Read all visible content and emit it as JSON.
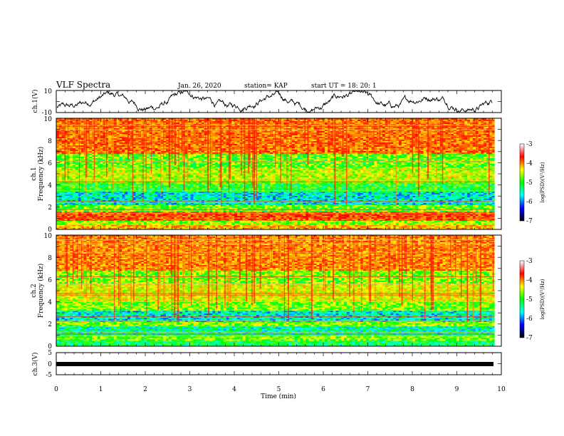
{
  "header": {
    "title": "VLF Spectra",
    "date": "Jan. 26, 2020",
    "station": "station= KAP",
    "start_ut": "start  UT =   18: 20: 1"
  },
  "colorbar": {
    "label": "log(PSD)(V²/Hz)",
    "ticks": [
      "-3",
      "-4",
      "-5",
      "-6",
      "-7"
    ],
    "stops": [
      "#ffffff",
      "#ff0000",
      "#ffff00",
      "#00ff00",
      "#00ffff",
      "#0000ff",
      "#000000"
    ]
  },
  "chart_data": [
    {
      "type": "line",
      "name": "ch1-waveform",
      "ylabel": "ch.1(V)",
      "ylim": [
        -10,
        10
      ],
      "yticks": [
        "10",
        "-10"
      ],
      "xlim": [
        0,
        10
      ],
      "description_range_mean_v": 0,
      "series_color": "#000000"
    },
    {
      "type": "heatmap",
      "name": "ch1-spectrogram",
      "ylabel_channel": "ch.1",
      "ylabel": "Frequency (kHz)",
      "ylim": [
        0,
        10
      ],
      "yticks": [
        "0",
        "2",
        "4",
        "6",
        "8",
        "10"
      ],
      "xlim": [
        0,
        9.85
      ],
      "clim": [
        -7,
        -3
      ],
      "bands_khz": [
        {
          "from": 0.0,
          "to": 0.4,
          "level": -3.9
        },
        {
          "from": 0.4,
          "to": 0.8,
          "level": -4.6
        },
        {
          "from": 0.8,
          "to": 1.6,
          "level": -3.4
        },
        {
          "from": 1.6,
          "to": 2.2,
          "level": -4.8
        },
        {
          "from": 2.2,
          "to": 3.4,
          "level": -5.6
        },
        {
          "from": 3.4,
          "to": 4.2,
          "level": -5.0
        },
        {
          "from": 4.2,
          "to": 5.6,
          "level": -4.5
        },
        {
          "from": 5.6,
          "to": 6.8,
          "level": -4.8
        },
        {
          "from": 6.8,
          "to": 10.0,
          "level": -3.6
        }
      ]
    },
    {
      "type": "heatmap",
      "name": "ch2-spectrogram",
      "ylabel_channel": "ch.2",
      "ylabel": "Frequency (kHz)",
      "ylim": [
        0,
        10
      ],
      "yticks": [
        "0",
        "2",
        "4",
        "6",
        "8",
        "10"
      ],
      "xlim": [
        0,
        9.85
      ],
      "clim": [
        -7,
        -3
      ],
      "bands_khz": [
        {
          "from": 0.0,
          "to": 0.5,
          "level": -5.2
        },
        {
          "from": 0.5,
          "to": 1.0,
          "level": -4.7
        },
        {
          "from": 1.0,
          "to": 1.8,
          "level": -5.4
        },
        {
          "from": 1.8,
          "to": 2.2,
          "level": -4.6
        },
        {
          "from": 2.2,
          "to": 3.2,
          "level": -5.6
        },
        {
          "from": 3.2,
          "to": 4.0,
          "level": -4.7
        },
        {
          "from": 4.0,
          "to": 5.6,
          "level": -4.3
        },
        {
          "from": 5.6,
          "to": 6.8,
          "level": -4.7
        },
        {
          "from": 6.8,
          "to": 10.0,
          "level": -3.7
        }
      ]
    },
    {
      "type": "line",
      "name": "ch3-waveform",
      "ylabel": "ch.3(V)",
      "ylim": [
        -5,
        5
      ],
      "yticks": [
        "5",
        "0",
        "-5"
      ],
      "xlim": [
        0,
        10
      ],
      "baseline_v": 0,
      "series_color": "#000000"
    }
  ],
  "xaxis": {
    "label": "Time (min)",
    "ticks": [
      "0",
      "1",
      "2",
      "3",
      "4",
      "5",
      "6",
      "7",
      "8",
      "9",
      "10"
    ],
    "xlim": [
      0,
      10
    ]
  }
}
